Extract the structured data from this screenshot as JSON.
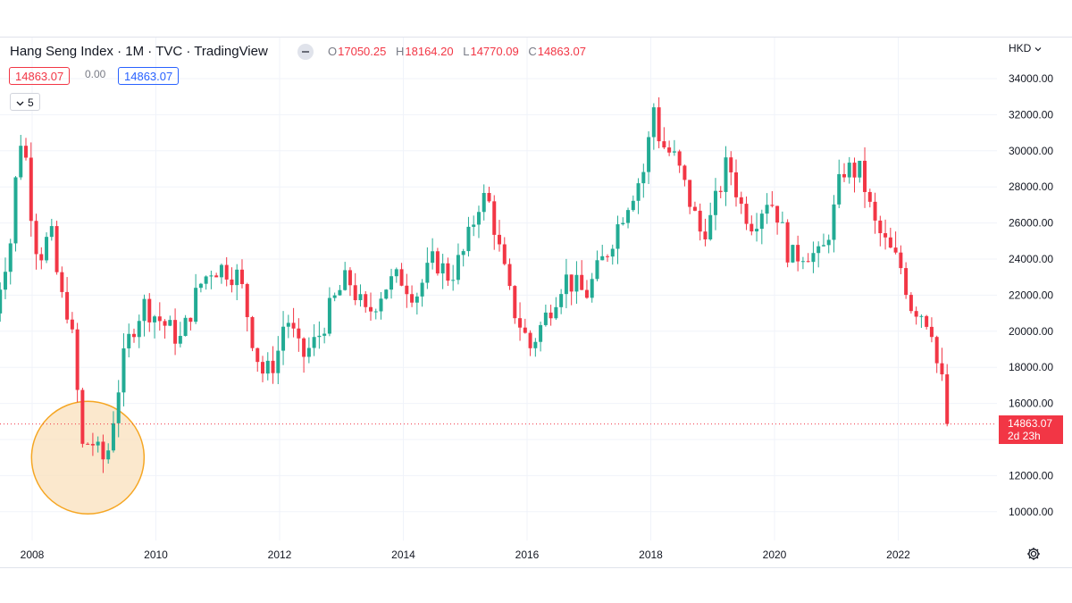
{
  "header": {
    "symbol": "Hang Seng Index",
    "interval": "1M",
    "exchange": "TVC",
    "source": "TradingView",
    "separator": "·",
    "ohlc": {
      "o_label": "O",
      "o": "17050.25",
      "h_label": "H",
      "h": "18164.20",
      "l_label": "L",
      "l": "14770.09",
      "c_label": "C",
      "c": "14863.07"
    }
  },
  "trade": {
    "sell": "14863.07",
    "spread": "0.00",
    "buy": "14863.07"
  },
  "indicators_toggle": {
    "icon": "chevron-down-icon",
    "count": "5"
  },
  "currency": {
    "label": "HKD",
    "icon": "chevron-down-icon"
  },
  "last_price": {
    "value": "14863.07",
    "countdown": "2d 23h"
  },
  "settings_icon": "gear-icon",
  "colors": {
    "up": "#22ab94",
    "down": "#f23645",
    "highlight_fill": "#fae0bc",
    "highlight_stroke": "#f5a623",
    "grid": "#f0f3fa"
  },
  "chart_data": {
    "type": "candlestick",
    "interval": "monthly",
    "x_range": [
      2007.4,
      2022.79
    ],
    "y_ticks": [
      10000,
      12000,
      16000,
      18000,
      20000,
      22000,
      24000,
      26000,
      28000,
      30000,
      32000,
      34000
    ],
    "y_tick_labels": [
      "10000.00",
      "12000.00",
      "16000.00",
      "18000.00",
      "20000.00",
      "22000.00",
      "24000.00",
      "26000.00",
      "28000.00",
      "30000.00",
      "32000.00",
      "34000.00"
    ],
    "x_ticks": [
      2008,
      2010,
      2012,
      2014,
      2016,
      2018,
      2020,
      2022
    ],
    "x_tick_labels": [
      "2008",
      "2010",
      "2012",
      "2014",
      "2016",
      "2018",
      "2020",
      "2022"
    ],
    "anchors": [
      [
        2007.4,
        21000
      ],
      [
        2007.5,
        23000
      ],
      [
        2007.65,
        25000
      ],
      [
        2007.75,
        29000
      ],
      [
        2007.85,
        31500
      ],
      [
        2007.95,
        27500
      ],
      [
        2008.1,
        24000
      ],
      [
        2008.3,
        25500
      ],
      [
        2008.45,
        22000
      ],
      [
        2008.6,
        21000
      ],
      [
        2008.7,
        18000
      ],
      [
        2008.8,
        13500
      ],
      [
        2008.95,
        14000
      ],
      [
        2009.1,
        13000
      ],
      [
        2009.2,
        12800
      ],
      [
        2009.3,
        15000
      ],
      [
        2009.45,
        18000
      ],
      [
        2009.6,
        20000
      ],
      [
        2009.8,
        21500
      ],
      [
        2010.1,
        20500
      ],
      [
        2010.4,
        19500
      ],
      [
        2010.7,
        22500
      ],
      [
        2010.9,
        23500
      ],
      [
        2011.1,
        23500
      ],
      [
        2011.35,
        23000
      ],
      [
        2011.6,
        19000
      ],
      [
        2011.75,
        17500
      ],
      [
        2011.95,
        18500
      ],
      [
        2012.1,
        21000
      ],
      [
        2012.35,
        18500
      ],
      [
        2012.6,
        19500
      ],
      [
        2012.85,
        21500
      ],
      [
        2013.1,
        23000
      ],
      [
        2013.4,
        20800
      ],
      [
        2013.7,
        22500
      ],
      [
        2013.95,
        23000
      ],
      [
        2014.2,
        22000
      ],
      [
        2014.5,
        24000
      ],
      [
        2014.75,
        23000
      ],
      [
        2015.0,
        24500
      ],
      [
        2015.25,
        27500
      ],
      [
        2015.4,
        27000
      ],
      [
        2015.55,
        24500
      ],
      [
        2015.75,
        21500
      ],
      [
        2016.05,
        19100
      ],
      [
        2016.3,
        20800
      ],
      [
        2016.6,
        23000
      ],
      [
        2016.95,
        22000
      ],
      [
        2017.3,
        24500
      ],
      [
        2017.6,
        27000
      ],
      [
        2017.9,
        29000
      ],
      [
        2018.05,
        32500
      ],
      [
        2018.15,
        30500
      ],
      [
        2018.4,
        29500
      ],
      [
        2018.6,
        27500
      ],
      [
        2018.8,
        25500
      ],
      [
        2018.95,
        26000
      ],
      [
        2019.25,
        29500
      ],
      [
        2019.45,
        27000
      ],
      [
        2019.65,
        26000
      ],
      [
        2019.9,
        27500
      ],
      [
        2020.05,
        26500
      ],
      [
        2020.25,
        24000
      ],
      [
        2020.5,
        24500
      ],
      [
        2020.75,
        24000
      ],
      [
        2020.95,
        26500
      ],
      [
        2021.1,
        29000
      ],
      [
        2021.4,
        28800
      ],
      [
        2021.6,
        26000
      ],
      [
        2021.85,
        24500
      ],
      [
        2022.05,
        23500
      ],
      [
        2022.2,
        21500
      ],
      [
        2022.4,
        21000
      ],
      [
        2022.55,
        20200
      ],
      [
        2022.65,
        17500
      ],
      [
        2022.72,
        17050
      ],
      [
        2022.79,
        14863
      ]
    ],
    "last_close": 14863.07,
    "highlight": {
      "label": "2008-2009 low",
      "center": [
        2008.9,
        13000
      ]
    }
  }
}
